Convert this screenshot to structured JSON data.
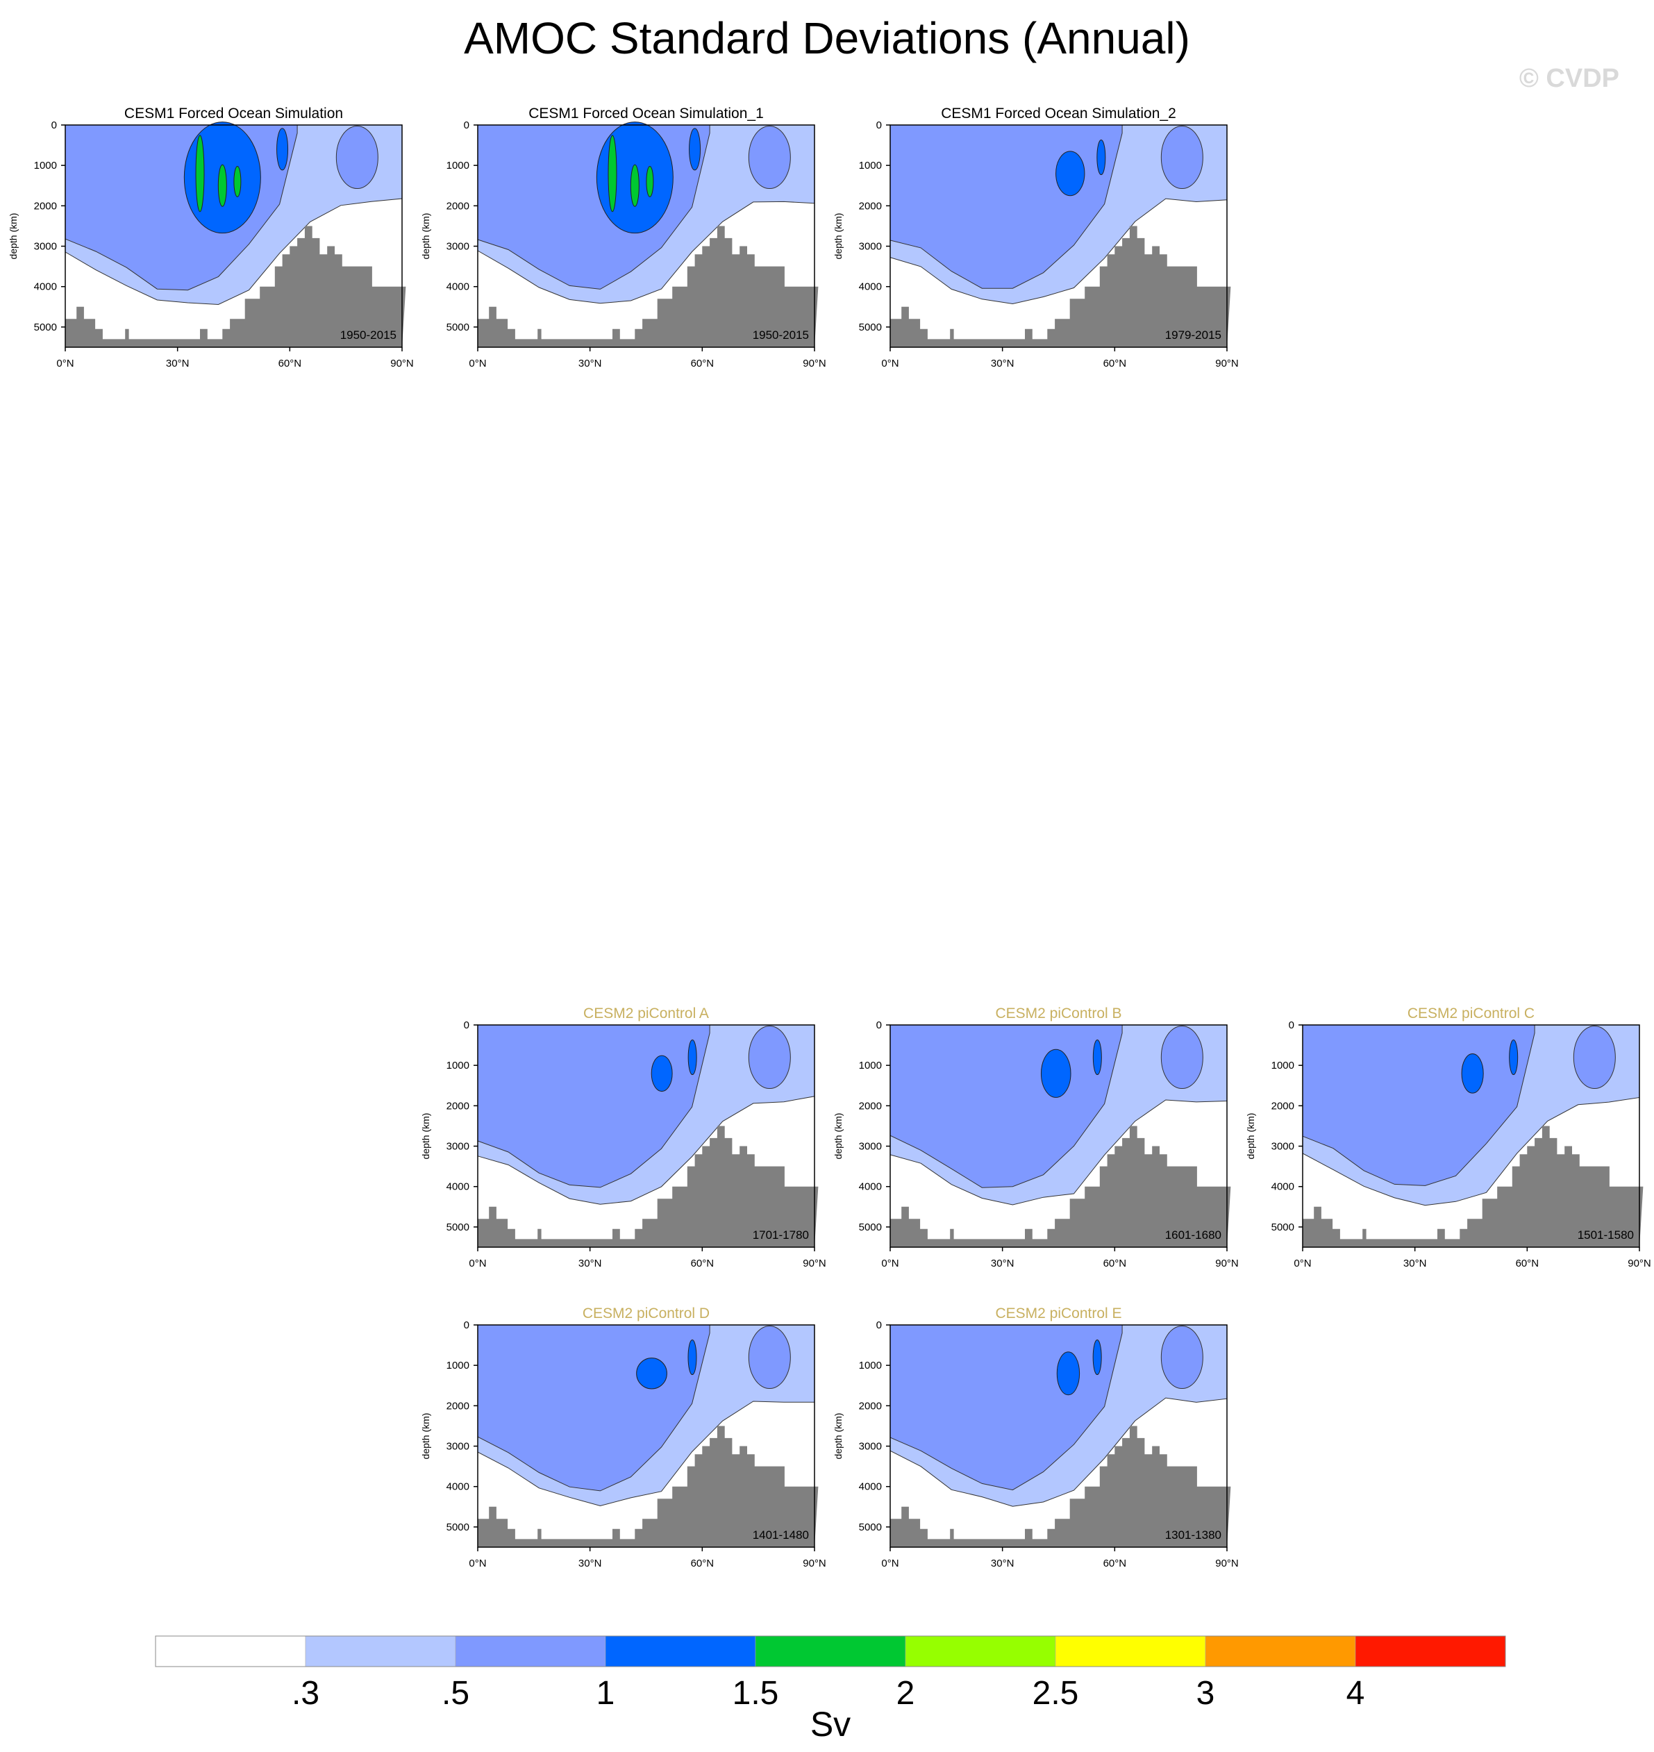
{
  "figure": {
    "title": "AMOC Standard Deviations (Annual)",
    "watermark": "© CVDP"
  },
  "chart_data": {
    "type": "heatmap",
    "variable": "AMOC standard deviation",
    "units": "Sv",
    "colorbar": {
      "levels": [
        ".3",
        ".5",
        "1",
        "1.5",
        "2",
        "2.5",
        "3",
        "4"
      ],
      "level_values": [
        0.3,
        0.5,
        1,
        1.5,
        2,
        2.5,
        3,
        4
      ],
      "colors": [
        "#ffffff",
        "#b3c7ff",
        "#7f99ff",
        "#0066ff",
        "#00c832",
        "#96ff00",
        "#ffff00",
        "#ff9900",
        "#ff1900"
      ],
      "label": "Sv"
    },
    "axes": {
      "ylabel": "depth (km)",
      "y_ticks": [
        0,
        1000,
        2000,
        3000,
        4000,
        5000
      ],
      "y_tick_labels": [
        "0",
        "1000",
        "2000",
        "3000",
        "4000",
        "5000"
      ],
      "ylim": [
        0,
        5500
      ],
      "x_ticks": [
        0,
        30,
        60,
        90
      ],
      "x_tick_labels": [
        "0°N",
        "30°N",
        "60°N",
        "90°N"
      ],
      "xlim": [
        0,
        90
      ],
      "land_color": "#808080"
    },
    "panels": [
      {
        "title": "CESM1 Forced Ocean Simulation",
        "period": "1950-2015",
        "title_color": "#000000"
      },
      {
        "title": "CESM1 Forced Ocean Simulation_1",
        "period": "1950-2015",
        "title_color": "#000000"
      },
      {
        "title": "CESM1 Forced Ocean Simulation_2",
        "period": "1979-2015",
        "title_color": "#000000"
      },
      {
        "title": "CESM2 piControl A",
        "period": "1701-1780",
        "title_color": "#c8b060"
      },
      {
        "title": "CESM2 piControl B",
        "period": "1601-1680",
        "title_color": "#c8b060"
      },
      {
        "title": "CESM2 piControl C",
        "period": "1501-1580",
        "title_color": "#c8b060"
      },
      {
        "title": "CESM2 piControl D",
        "period": "1401-1480",
        "title_color": "#c8b060"
      },
      {
        "title": "CESM2 piControl E",
        "period": "1301-1380",
        "title_color": "#c8b060"
      }
    ]
  }
}
